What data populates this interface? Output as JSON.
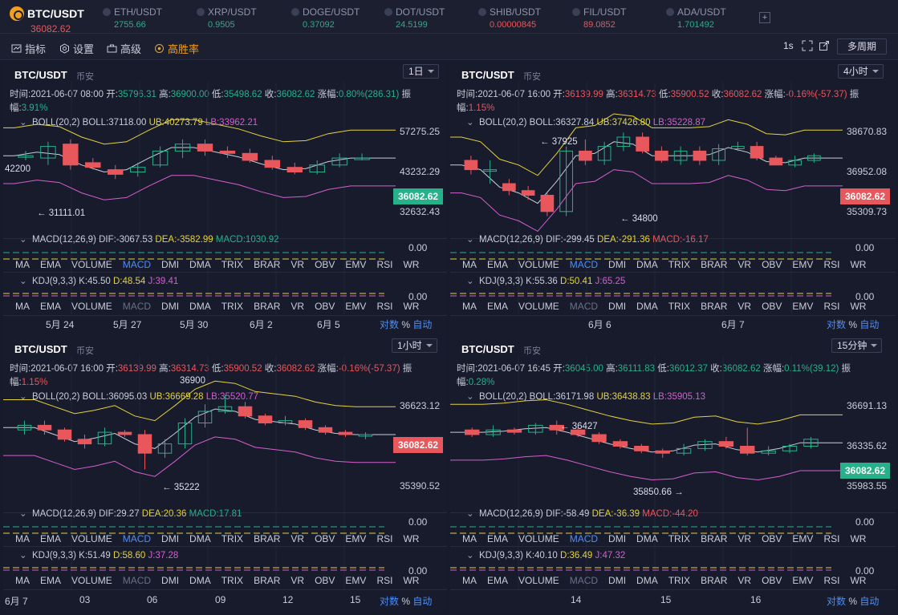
{
  "tickers": [
    {
      "name": "BTC/USDT",
      "price": "36082.62",
      "dir": "dn",
      "main": true,
      "x": 12,
      "w": 100
    },
    {
      "name": "ETH/USDT",
      "price": "2755.66",
      "dir": "up",
      "x": 128,
      "w": 110
    },
    {
      "name": "XRP/USDT",
      "price": "0.9505",
      "dir": "up",
      "x": 245,
      "w": 110
    },
    {
      "name": "DOGE/USDT",
      "price": "0.37092",
      "dir": "up",
      "x": 363,
      "w": 110
    },
    {
      "name": "DOT/USDT",
      "price": "24.5199",
      "dir": "up",
      "x": 479,
      "w": 110
    },
    {
      "name": "SHIB/USDT",
      "price": "0.00000845",
      "dir": "dn",
      "x": 596,
      "w": 110
    },
    {
      "name": "FIL/USDT",
      "price": "89.0852",
      "dir": "dn",
      "x": 713,
      "w": 110
    },
    {
      "name": "ADA/USDT",
      "price": "1.701492",
      "dir": "up",
      "x": 830,
      "w": 110
    }
  ],
  "add_label": "+",
  "toolbar": {
    "indicators": "指标",
    "settings": "设置",
    "advanced": "高级",
    "winrate": "高胜率",
    "interval": "1s",
    "period_select": "多周期"
  },
  "panels": [
    {
      "symbol": "BTC/USDT",
      "exchange": "币安",
      "interval": "1日",
      "ohlc": [
        {
          "k": "时间:",
          "v": "2021-06-07 08:00"
        },
        {
          "k": " 开:",
          "v": "35796.31",
          "c": "g"
        },
        {
          "k": " 高:",
          "v": "36900.00",
          "c": "g"
        },
        {
          "k": " 低:",
          "v": "35498.62",
          "c": "g"
        },
        {
          "k": " 收:",
          "v": "36082.62",
          "c": "g"
        },
        {
          "k": " 涨幅:",
          "v": ""
        },
        {
          "k": "",
          "v": "0.80%(286.31)",
          "c": "g"
        },
        {
          "k": " 振幅:",
          "v": "3.91%",
          "c": "g"
        }
      ],
      "boll": {
        "label": "BOLL(20,2)",
        "mid": "BOLL:37118.00",
        "ub": "UB:40273.79",
        "lb": "LB:33962.21"
      },
      "axis": [
        "57275.25",
        "43232.29",
        "36082.62",
        "32632.43"
      ],
      "annotations": [
        "42200",
        "← 31111.01"
      ],
      "macd": {
        "label": "MACD(12,26,9)",
        "dif": "DIF:-3067.53",
        "dea": "DEA:-3582.99",
        "macd": "MACD:1030.92",
        "val": "0.00"
      },
      "kdj": {
        "label": "KDJ(9,3,3)",
        "k": "K:45.50",
        "d": "D:48.54",
        "j": "J:39.41",
        "val": "0.00"
      },
      "tabs1_active": "MACD",
      "tabs2_active": "",
      "xlabels": [
        "5月 24",
        "5月 27",
        "5月 30",
        "6月 2",
        "6月 5"
      ],
      "scale": [
        "对数",
        "%",
        "自动"
      ],
      "candles": [
        [
          0.62,
          0.62,
          0.6,
          0.64
        ],
        [
          0.61,
          0.66,
          0.58,
          0.68
        ],
        [
          0.67,
          0.58,
          0.56,
          0.69
        ],
        [
          0.59,
          0.57,
          0.56,
          0.61
        ],
        [
          0.56,
          0.54,
          0.52,
          0.58
        ],
        [
          0.55,
          0.57,
          0.53,
          0.59
        ],
        [
          0.58,
          0.64,
          0.57,
          0.66
        ],
        [
          0.64,
          0.67,
          0.61,
          0.69
        ],
        [
          0.67,
          0.64,
          0.62,
          0.69
        ],
        [
          0.64,
          0.63,
          0.61,
          0.66
        ],
        [
          0.63,
          0.6,
          0.59,
          0.65
        ],
        [
          0.6,
          0.57,
          0.56,
          0.62
        ],
        [
          0.57,
          0.55,
          0.54,
          0.59
        ],
        [
          0.55,
          0.58,
          0.54,
          0.6
        ],
        [
          0.58,
          0.61,
          0.57,
          0.63
        ],
        [
          0.61,
          0.61,
          0.6,
          0.63
        ]
      ]
    },
    {
      "symbol": "BTC/USDT",
      "exchange": "币安",
      "interval": "4小时",
      "ohlc": [
        {
          "k": "时间:",
          "v": "2021-06-07 16:00"
        },
        {
          "k": " 开:",
          "v": "36139.99",
          "c": "r"
        },
        {
          "k": " 高:",
          "v": "36314.73",
          "c": "r"
        },
        {
          "k": " 低:",
          "v": "35900.52",
          "c": "r"
        },
        {
          "k": " 收:",
          "v": "36082.62",
          "c": "r"
        },
        {
          "k": " 涨幅:",
          "v": ""
        },
        {
          "k": "",
          "v": "-0.16%(-57.37)",
          "c": "r"
        },
        {
          "k": " 振幅:",
          "v": "1.15%",
          "c": "r"
        }
      ],
      "boll": {
        "label": "BOLL(20,2)",
        "mid": "BOLL:36327.84",
        "ub": "UB:37426.80",
        "lb": "LB:35228.87"
      },
      "axis": [
        "38670.83",
        "36952.08",
        "36082.62",
        "35309.73"
      ],
      "annotations": [
        "← 37925",
        "← 34800"
      ],
      "macd": {
        "label": "MACD(12,26,9)",
        "dif": "DIF:-299.45",
        "dea": "DEA:-291.36",
        "macd": "MACD:-16.17",
        "val": "0.00"
      },
      "kdj": {
        "label": "KDJ(9,3,3)",
        "k": "K:55.36",
        "d": "D:50.41",
        "j": "J:65.25",
        "val": "0.00"
      },
      "tabs1_active": "MACD",
      "tabs2_active": "",
      "xlabels": [
        "6月 6",
        "6月 7"
      ],
      "scale": [
        "对数",
        "%",
        "自动"
      ],
      "candles": [
        [
          0.6,
          0.56,
          0.54,
          0.62
        ],
        [
          0.56,
          0.56,
          0.5,
          0.6
        ],
        [
          0.5,
          0.47,
          0.45,
          0.52
        ],
        [
          0.47,
          0.45,
          0.43,
          0.49
        ],
        [
          0.45,
          0.38,
          0.36,
          0.46
        ],
        [
          0.38,
          0.64,
          0.36,
          0.66
        ],
        [
          0.64,
          0.6,
          0.58,
          0.69
        ],
        [
          0.6,
          0.66,
          0.58,
          0.68
        ],
        [
          0.66,
          0.7,
          0.64,
          0.72
        ],
        [
          0.7,
          0.64,
          0.63,
          0.72
        ],
        [
          0.64,
          0.6,
          0.59,
          0.66
        ],
        [
          0.6,
          0.64,
          0.58,
          0.66
        ],
        [
          0.64,
          0.6,
          0.58,
          0.66
        ],
        [
          0.6,
          0.65,
          0.58,
          0.67
        ],
        [
          0.65,
          0.66,
          0.64,
          0.68
        ],
        [
          0.66,
          0.61,
          0.6,
          0.68
        ],
        [
          0.61,
          0.58,
          0.58,
          0.62
        ],
        [
          0.58,
          0.6,
          0.57,
          0.62
        ],
        [
          0.6,
          0.62,
          0.59,
          0.63
        ]
      ]
    },
    {
      "symbol": "BTC/USDT",
      "exchange": "币安",
      "interval": "1小时",
      "ohlc": [
        {
          "k": "时间:",
          "v": "2021-06-07 16:00"
        },
        {
          "k": " 开:",
          "v": "36139.99",
          "c": "r"
        },
        {
          "k": " 高:",
          "v": "36314.73",
          "c": "r"
        },
        {
          "k": " 低:",
          "v": "35900.52",
          "c": "r"
        },
        {
          "k": " 收:",
          "v": "36082.62",
          "c": "r"
        },
        {
          "k": " 涨幅:",
          "v": ""
        },
        {
          "k": "",
          "v": "-0.16%(-57.37)",
          "c": "r"
        },
        {
          "k": " 振幅:",
          "v": "1.15%",
          "c": "r"
        }
      ],
      "boll": {
        "label": "BOLL(20,2)",
        "mid": "BOLL:36095.03",
        "ub": "UB:36669.28",
        "lb": "LB:35520.77"
      },
      "axis": [
        "36623.12",
        "36082.62",
        "35390.52"
      ],
      "annotations": [
        "36900",
        "← 35222"
      ],
      "macd": {
        "label": "MACD(12,26,9)",
        "dif": "DIF:29.27",
        "dea": "DEA:20.36",
        "macd": "MACD:17.81",
        "val": "0.00"
      },
      "kdj": {
        "label": "KDJ(9,3,3)",
        "k": "K:51.49",
        "d": "D:58.60",
        "j": "J:37.28",
        "val": "0.00"
      },
      "tabs1_active": "MACD",
      "tabs2_active": "",
      "xlabels": [
        "6月 7",
        "03",
        "06",
        "09",
        "12",
        "15"
      ],
      "scale": [
        "对数",
        "%",
        "自动"
      ],
      "candles": [
        [
          0.62,
          0.64,
          0.6,
          0.66
        ],
        [
          0.64,
          0.62,
          0.6,
          0.66
        ],
        [
          0.62,
          0.58,
          0.57,
          0.63
        ],
        [
          0.58,
          0.56,
          0.54,
          0.6
        ],
        [
          0.56,
          0.61,
          0.55,
          0.63
        ],
        [
          0.61,
          0.6,
          0.59,
          0.62
        ],
        [
          0.6,
          0.52,
          0.45,
          0.62
        ],
        [
          0.52,
          0.56,
          0.5,
          0.58
        ],
        [
          0.56,
          0.65,
          0.54,
          0.67
        ],
        [
          0.65,
          0.7,
          0.63,
          0.73
        ],
        [
          0.7,
          0.72,
          0.69,
          0.77
        ],
        [
          0.72,
          0.68,
          0.67,
          0.74
        ],
        [
          0.68,
          0.65,
          0.64,
          0.69
        ],
        [
          0.65,
          0.66,
          0.64,
          0.68
        ],
        [
          0.66,
          0.63,
          0.62,
          0.67
        ],
        [
          0.63,
          0.61,
          0.6,
          0.64
        ],
        [
          0.61,
          0.6,
          0.59,
          0.62
        ],
        [
          0.6,
          0.6,
          0.58,
          0.61
        ]
      ]
    },
    {
      "symbol": "BTC/USDT",
      "exchange": "币安",
      "interval": "15分钟",
      "ohlc": [
        {
          "k": "时间:",
          "v": "2021-06-07 16:45"
        },
        {
          "k": " 开:",
          "v": "36045.00",
          "c": "g"
        },
        {
          "k": " 高:",
          "v": "36111.83",
          "c": "g"
        },
        {
          "k": " 低:",
          "v": "36012.37",
          "c": "g"
        },
        {
          "k": " 收:",
          "v": "36082.62",
          "c": "g"
        },
        {
          "k": " 涨幅:",
          "v": ""
        },
        {
          "k": "",
          "v": "0.11%(39.12)",
          "c": "g"
        },
        {
          "k": " 振幅:",
          "v": "0.28%",
          "c": "g"
        }
      ],
      "boll": {
        "label": "BOLL(20,2)",
        "mid": "BOLL:36171.98",
        "ub": "UB:36438.83",
        "lb": "LB:35905.13"
      },
      "axis": [
        "36691.13",
        "36335.62",
        "36082.62",
        "35983.55"
      ],
      "annotations": [
        "← 36427",
        "35850.66 →"
      ],
      "macd": {
        "label": "MACD(12,26,9)",
        "dif": "DIF:-58.49",
        "dea": "DEA:-36.39",
        "macd": "MACD:-44.20",
        "val": "0.00"
      },
      "kdj": {
        "label": "KDJ(9,3,3)",
        "k": "K:40.10",
        "d": "D:36.49",
        "j": "J:47.32",
        "val": "0.00"
      },
      "tabs1_active": "MACD",
      "tabs2_active": "",
      "xlabels": [
        "14",
        "15",
        "16"
      ],
      "scale": [
        "对数",
        "%",
        "自动"
      ],
      "candles": [
        [
          0.62,
          0.6,
          0.59,
          0.63
        ],
        [
          0.6,
          0.62,
          0.59,
          0.64
        ],
        [
          0.62,
          0.61,
          0.6,
          0.63
        ],
        [
          0.61,
          0.64,
          0.6,
          0.65
        ],
        [
          0.64,
          0.62,
          0.6,
          0.66
        ],
        [
          0.62,
          0.6,
          0.59,
          0.63
        ],
        [
          0.6,
          0.57,
          0.56,
          0.61
        ],
        [
          0.57,
          0.55,
          0.54,
          0.58
        ],
        [
          0.55,
          0.53,
          0.52,
          0.56
        ],
        [
          0.53,
          0.52,
          0.5,
          0.54
        ],
        [
          0.52,
          0.54,
          0.51,
          0.56
        ],
        [
          0.54,
          0.57,
          0.53,
          0.58
        ],
        [
          0.57,
          0.55,
          0.54,
          0.59
        ],
        [
          0.55,
          0.52,
          0.51,
          0.63
        ],
        [
          0.52,
          0.53,
          0.51,
          0.55
        ],
        [
          0.53,
          0.55,
          0.52,
          0.56
        ],
        [
          0.55,
          0.58,
          0.54,
          0.59
        ]
      ]
    }
  ],
  "tabs1": [
    "MA",
    "EMA",
    "VOLUME",
    "MACD",
    "DMI",
    "DMA",
    "TRIX",
    "BRAR",
    "VR",
    "OBV",
    "EMV",
    "RSI",
    "WR"
  ],
  "tabs2": [
    "MA",
    "EMA",
    "VOLUME",
    "MACD",
    "DMI",
    "DMA",
    "TRIX",
    "BRAR",
    "VR",
    "OBV",
    "EMV",
    "RSI",
    "WR"
  ],
  "colors": {
    "up": "#26b18a",
    "down": "#e8575b",
    "accent": "#4f8df5",
    "ub": "#e6d33a",
    "lb": "#d55fcf",
    "mid": "#c9cdd8"
  }
}
